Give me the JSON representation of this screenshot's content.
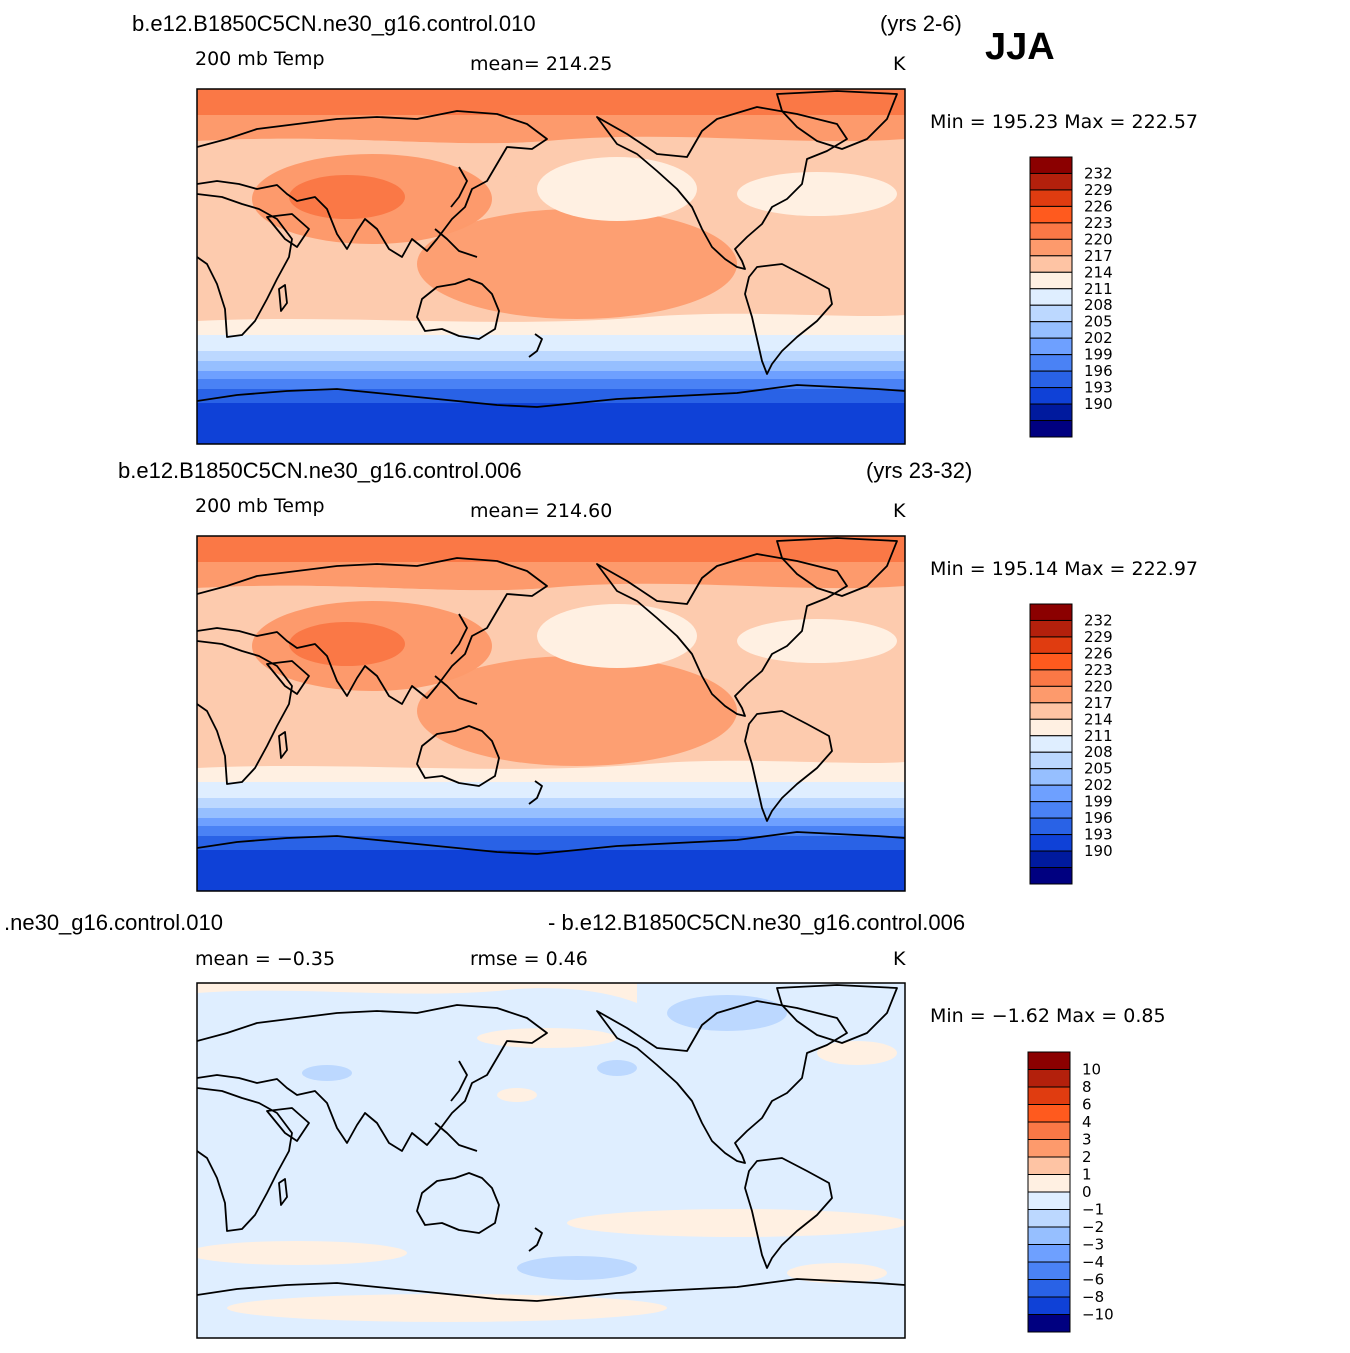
{
  "season": "JJA",
  "panels": [
    {
      "case": "b.e12.B1850C5CN.ne30_g16.control.010",
      "years": "(yrs 2-6)",
      "variable": "200 mb Temp",
      "stat": "mean=  214.25",
      "units": "K",
      "minmax": "Min  =  195.23  Max  =  222.57",
      "colorbar_labels": [
        "232",
        "229",
        "226",
        "223",
        "220",
        "217",
        "214",
        "211",
        "208",
        "205",
        "202",
        "199",
        "196",
        "193",
        "190"
      ]
    },
    {
      "case": "b.e12.B1850C5CN.ne30_g16.control.006",
      "years": "(yrs 23-32)",
      "variable": "200 mb Temp",
      "stat": "mean=  214.60",
      "units": "K",
      "minmax": "Min  =  195.14  Max  =  222.97",
      "colorbar_labels": [
        "232",
        "229",
        "226",
        "223",
        "220",
        "217",
        "214",
        "211",
        "208",
        "205",
        "202",
        "199",
        "196",
        "193",
        "190"
      ]
    },
    {
      "case_left": ".ne30_g16.control.010",
      "case_right": "- b.e12.B1850C5CN.ne30_g16.control.006",
      "stat_mean": "mean  =    −0.35",
      "stat_rmse": "rmse  =      0.46",
      "units": "K",
      "minmax": "Min  =    −1.62  Max  =       0.85",
      "colorbar_labels": [
        "10",
        "8",
        "6",
        "4",
        "3",
        "2",
        "1",
        "0",
        "−1",
        "−2",
        "−3",
        "−4",
        "−6",
        "−8",
        "−10"
      ]
    }
  ],
  "colors": {
    "temp_scale": [
      "#8b0000",
      "#b3200c",
      "#e03c10",
      "#ff5a1e",
      "#fa7846",
      "#fd9a6c",
      "#fec4a4",
      "#fff0e2",
      "#dfeeff",
      "#bcd8ff",
      "#96bfff",
      "#6ea0ff",
      "#4a82f5",
      "#2962e6",
      "#0f41d7",
      "#001a9e",
      "#000080"
    ],
    "diff_scale": [
      "#8b0000",
      "#b3200c",
      "#e03c10",
      "#ff5a1e",
      "#fa7846",
      "#fd9a6c",
      "#fec4a4",
      "#fff0e2",
      "#dfeeff",
      "#bcd8ff",
      "#96bfff",
      "#6ea0ff",
      "#4a82f5",
      "#2962e6",
      "#0f41d7",
      "#000080"
    ]
  }
}
